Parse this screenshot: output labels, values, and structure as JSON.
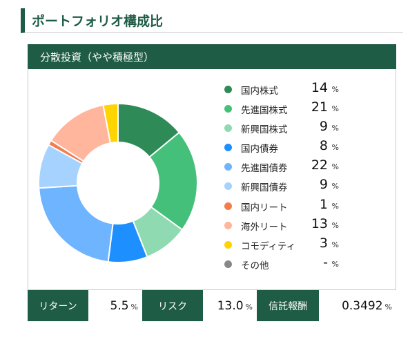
{
  "page_title": "ポートフォリオ構成比",
  "panel_title": "分散投資（やや積極型）",
  "chart_data": {
    "type": "pie",
    "categories": [
      "国内株式",
      "先進国株式",
      "新興国株式",
      "国内債券",
      "先進国債券",
      "新興国債券",
      "国内リート",
      "海外リート",
      "コモディティ",
      "その他"
    ],
    "values": [
      14,
      21,
      9,
      8,
      22,
      9,
      1,
      13,
      3,
      0
    ],
    "value_labels": [
      "14",
      "21",
      "9",
      "8",
      "22",
      "9",
      "1",
      "13",
      "3",
      "-"
    ],
    "unit": "%",
    "colors": [
      "#2e8b57",
      "#45c07a",
      "#8fdab0",
      "#1e8fff",
      "#6fb4ff",
      "#a6d2ff",
      "#f47c4d",
      "#ffb69c",
      "#ffd400",
      "#888888"
    ],
    "legend_position": "right",
    "hole": true
  },
  "stats": [
    {
      "label": "リターン",
      "value": "5.5",
      "unit": "%"
    },
    {
      "label": "リスク",
      "value": "13.0",
      "unit": "%"
    },
    {
      "label": "信託報酬",
      "value": "0.3492",
      "unit": "%"
    }
  ]
}
